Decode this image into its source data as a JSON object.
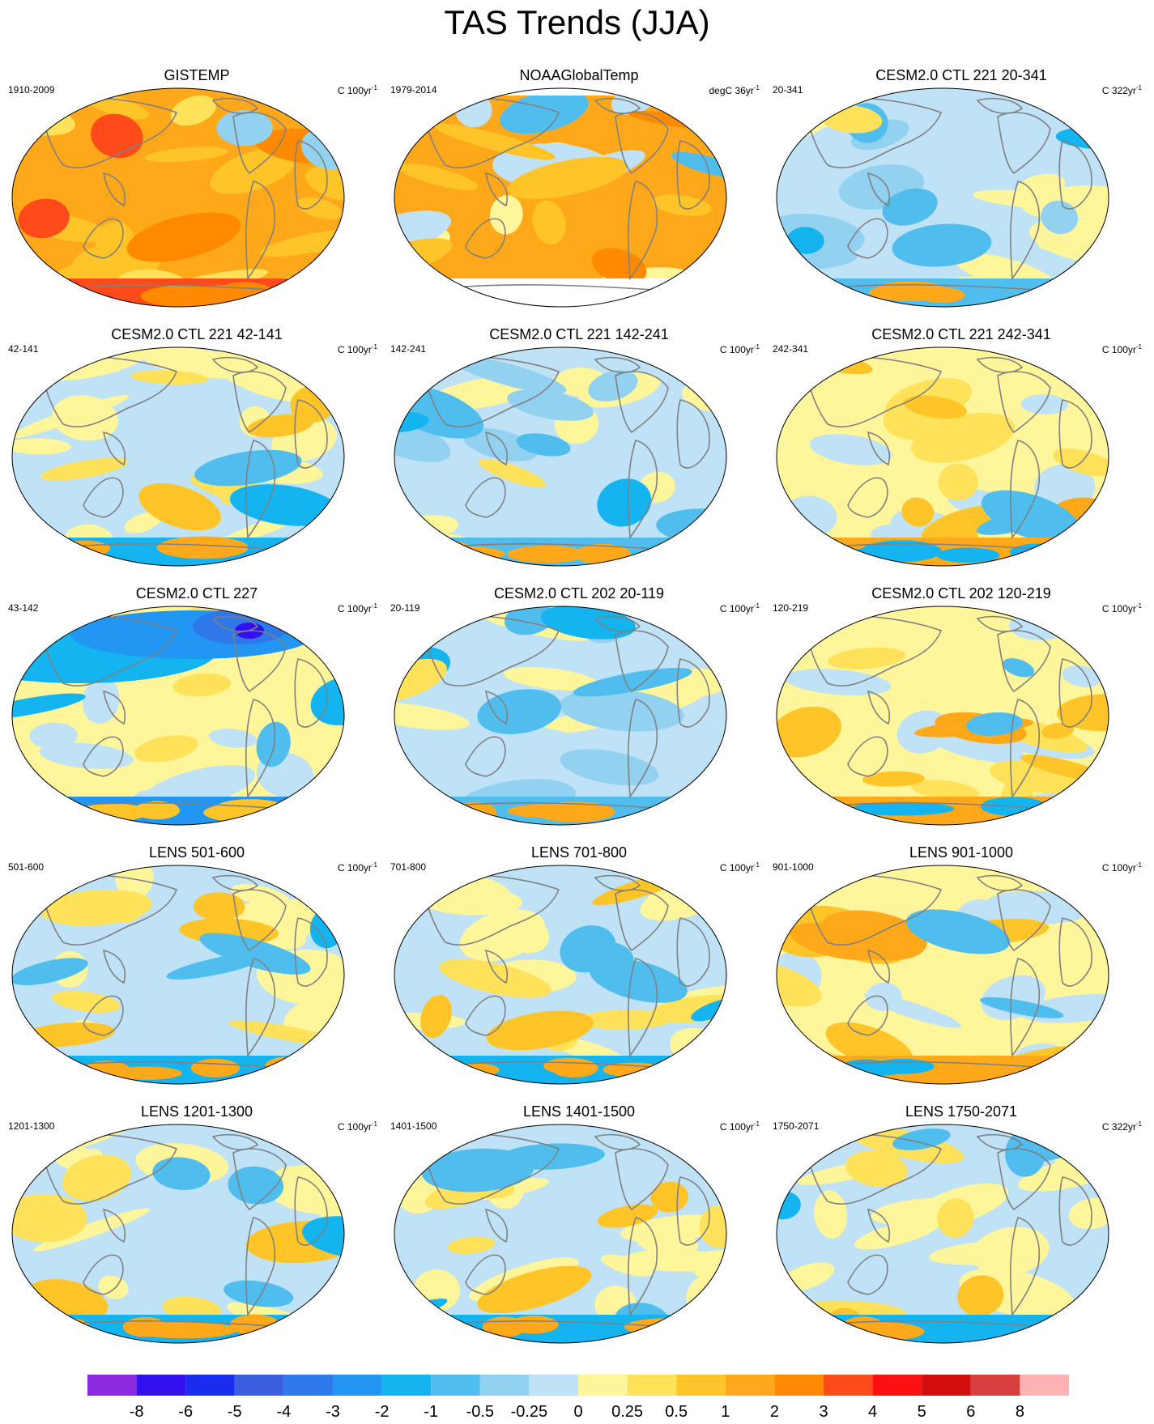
{
  "title": "TAS Trends (JJA)",
  "panels": [
    {
      "title": "GISTEMP",
      "left": "1910-2009",
      "unit": "C 100yr",
      "sup": "-1",
      "theme": "obs_warm"
    },
    {
      "title": "NOAAGlobalTemp",
      "left": "1979-2014",
      "unit": "degC 36yr",
      "sup": "-1",
      "theme": "obs_noaa"
    },
    {
      "title": "CESM2.0 CTL 221 20-341",
      "left": "20-341",
      "unit": "C 322yr",
      "sup": "-1",
      "theme": "cool"
    },
    {
      "title": "CESM2.0 CTL 221 42-141",
      "left": "42-141",
      "unit": "C 100yr",
      "sup": "-1",
      "theme": "mixed"
    },
    {
      "title": "CESM2.0 CTL 221 142-241",
      "left": "142-241",
      "unit": "C 100yr",
      "sup": "-1",
      "theme": "cool"
    },
    {
      "title": "CESM2.0 CTL 221 242-341",
      "left": "242-341",
      "unit": "C 100yr",
      "sup": "-1",
      "theme": "mixed_warm"
    },
    {
      "title": "CESM2.0 CTL 227",
      "left": "43-142",
      "unit": "C 100yr",
      "sup": "-1",
      "theme": "cold_north"
    },
    {
      "title": "CESM2.0 CTL 202 20-119",
      "left": "20-119",
      "unit": "C 100yr",
      "sup": "-1",
      "theme": "cool"
    },
    {
      "title": "CESM2.0 CTL 202 120-219",
      "left": "120-219",
      "unit": "C 100yr",
      "sup": "-1",
      "theme": "mixed_warm"
    },
    {
      "title": "LENS 501-600",
      "left": "501-600",
      "unit": "C 100yr",
      "sup": "-1",
      "theme": "mixed"
    },
    {
      "title": "LENS 701-800",
      "left": "701-800",
      "unit": "C 100yr",
      "sup": "-1",
      "theme": "mixed"
    },
    {
      "title": "LENS 901-1000",
      "left": "901-1000",
      "unit": "C 100yr",
      "sup": "-1",
      "theme": "mixed_warm"
    },
    {
      "title": "LENS 1201-1300",
      "left": "1201-1300",
      "unit": "C 100yr",
      "sup": "-1",
      "theme": "mixed"
    },
    {
      "title": "LENS 1401-1500",
      "left": "1401-1500",
      "unit": "C 100yr",
      "sup": "-1",
      "theme": "mixed"
    },
    {
      "title": "LENS 1750-2071",
      "left": "1750-2071",
      "unit": "C 322yr",
      "sup": "-1",
      "theme": "mixed"
    }
  ],
  "colorbar": {
    "labels": [
      "-8",
      "-6",
      "-5",
      "-4",
      "-3",
      "-2",
      "-1",
      "-0.5",
      "-0.25",
      "0",
      "0.25",
      "0.5",
      "1",
      "2",
      "3",
      "4",
      "5",
      "6",
      "8"
    ],
    "colors": [
      "#8a2be2",
      "#3311ee",
      "#1a2dee",
      "#3a5fe0",
      "#2e78ea",
      "#2196f3",
      "#13b4f0",
      "#4fbdee",
      "#92d1f0",
      "#bfe2f6",
      "#fff59a",
      "#ffe25a",
      "#ffc528",
      "#ffa81a",
      "#ff8a00",
      "#ff4a1a",
      "#ff1010",
      "#d30d0d",
      "#d84040",
      "#ffb3b3"
    ]
  },
  "palette": {
    "ocean_line": "#808080",
    "missing": "#ffffff"
  }
}
